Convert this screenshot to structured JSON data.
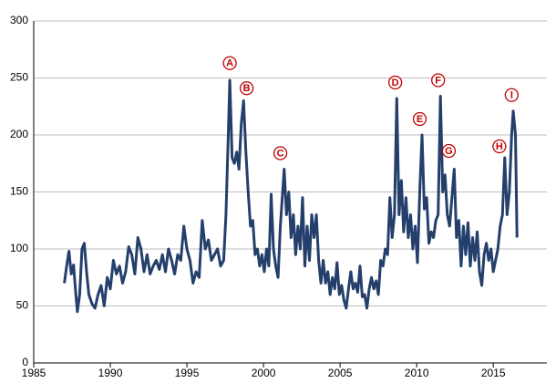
{
  "chart_data": {
    "type": "line",
    "xlim": [
      1985,
      2018.5
    ],
    "ylim": [
      0,
      300
    ],
    "xticks": [
      1985,
      1990,
      1995,
      2000,
      2005,
      2010,
      2015
    ],
    "yticks": [
      0,
      50,
      100,
      150,
      200,
      250,
      300
    ],
    "grid": true,
    "series": [
      {
        "color": "#243f6b",
        "x": [
          1987.0,
          1987.15,
          1987.3,
          1987.45,
          1987.6,
          1987.75,
          1987.85,
          1988.0,
          1988.15,
          1988.3,
          1988.45,
          1988.6,
          1988.8,
          1989.0,
          1989.2,
          1989.4,
          1989.6,
          1989.8,
          1990.0,
          1990.2,
          1990.4,
          1990.6,
          1990.8,
          1991.0,
          1991.2,
          1991.4,
          1991.6,
          1991.8,
          1992.0,
          1992.2,
          1992.4,
          1992.6,
          1992.8,
          1993.0,
          1993.2,
          1993.4,
          1993.6,
          1993.8,
          1994.0,
          1994.2,
          1994.4,
          1994.6,
          1994.8,
          1995.0,
          1995.2,
          1995.4,
          1995.6,
          1995.8,
          1996.0,
          1996.2,
          1996.4,
          1996.6,
          1996.8,
          1997.0,
          1997.2,
          1997.4,
          1997.55,
          1997.7,
          1997.8,
          1997.95,
          1998.1,
          1998.25,
          1998.4,
          1998.55,
          1998.7,
          1998.85,
          1999.0,
          1999.15,
          1999.3,
          1999.45,
          1999.6,
          1999.75,
          1999.9,
          2000.05,
          2000.2,
          2000.35,
          2000.5,
          2000.65,
          2000.8,
          2000.95,
          2001.1,
          2001.25,
          2001.35,
          2001.5,
          2001.65,
          2001.8,
          2001.95,
          2002.1,
          2002.25,
          2002.4,
          2002.55,
          2002.7,
          2002.85,
          2003.0,
          2003.15,
          2003.3,
          2003.45,
          2003.6,
          2003.75,
          2003.9,
          2004.05,
          2004.2,
          2004.35,
          2004.5,
          2004.65,
          2004.8,
          2004.95,
          2005.1,
          2005.25,
          2005.4,
          2005.55,
          2005.7,
          2005.85,
          2006.0,
          2006.15,
          2006.3,
          2006.45,
          2006.6,
          2006.75,
          2006.9,
          2007.05,
          2007.2,
          2007.35,
          2007.5,
          2007.65,
          2007.8,
          2007.95,
          2008.1,
          2008.25,
          2008.4,
          2008.55,
          2008.7,
          2008.85,
          2009.0,
          2009.15,
          2009.3,
          2009.45,
          2009.6,
          2009.75,
          2009.9,
          2010.05,
          2010.2,
          2010.35,
          2010.5,
          2010.65,
          2010.8,
          2010.95,
          2011.1,
          2011.25,
          2011.4,
          2011.55,
          2011.7,
          2011.85,
          2012.0,
          2012.15,
          2012.3,
          2012.45,
          2012.6,
          2012.75,
          2012.9,
          2013.05,
          2013.2,
          2013.35,
          2013.5,
          2013.65,
          2013.8,
          2013.95,
          2014.1,
          2014.25,
          2014.4,
          2014.55,
          2014.7,
          2014.85,
          2015.0,
          2015.15,
          2015.3,
          2015.45,
          2015.6,
          2015.75,
          2015.9,
          2016.05,
          2016.2,
          2016.3,
          2016.45,
          2016.55
        ],
        "values": [
          70,
          85,
          98,
          78,
          86,
          60,
          45,
          60,
          100,
          105,
          80,
          60,
          52,
          48,
          60,
          68,
          50,
          75,
          65,
          90,
          78,
          85,
          70,
          80,
          102,
          95,
          78,
          110,
          100,
          80,
          95,
          78,
          85,
          90,
          82,
          95,
          80,
          100,
          90,
          78,
          95,
          90,
          120,
          100,
          90,
          70,
          80,
          75,
          125,
          100,
          108,
          90,
          95,
          100,
          85,
          90,
          130,
          200,
          248,
          180,
          175,
          185,
          170,
          210,
          230,
          185,
          150,
          120,
          125,
          95,
          100,
          85,
          95,
          80,
          100,
          85,
          148,
          100,
          85,
          75,
          120,
          150,
          170,
          130,
          150,
          110,
          130,
          95,
          120,
          100,
          145,
          85,
          120,
          90,
          130,
          110,
          130,
          90,
          70,
          90,
          70,
          80,
          60,
          75,
          65,
          88,
          60,
          68,
          55,
          48,
          65,
          80,
          65,
          70,
          62,
          85,
          58,
          60,
          48,
          65,
          75,
          65,
          72,
          60,
          90,
          85,
          100,
          95,
          145,
          110,
          130,
          232,
          130,
          160,
          115,
          145,
          110,
          130,
          100,
          120,
          88,
          150,
          200,
          135,
          145,
          105,
          115,
          110,
          125,
          130,
          234,
          150,
          165,
          130,
          120,
          145,
          170,
          110,
          125,
          85,
          120,
          95,
          123,
          85,
          110,
          90,
          115,
          80,
          68,
          95,
          105,
          90,
          100,
          80,
          90,
          100,
          120,
          130,
          180,
          130,
          150,
          200,
          221,
          200,
          110
        ]
      }
    ],
    "annotations": [
      {
        "label": "A",
        "x": 1997.8,
        "y": 263
      },
      {
        "label": "B",
        "x": 1998.9,
        "y": 241
      },
      {
        "label": "C",
        "x": 2001.1,
        "y": 184
      },
      {
        "label": "D",
        "x": 2008.6,
        "y": 246
      },
      {
        "label": "E",
        "x": 2010.2,
        "y": 214
      },
      {
        "label": "F",
        "x": 2011.4,
        "y": 248
      },
      {
        "label": "G",
        "x": 2012.1,
        "y": 186
      },
      {
        "label": "H",
        "x": 2015.4,
        "y": 190
      },
      {
        "label": "I",
        "x": 2016.2,
        "y": 235
      }
    ]
  }
}
